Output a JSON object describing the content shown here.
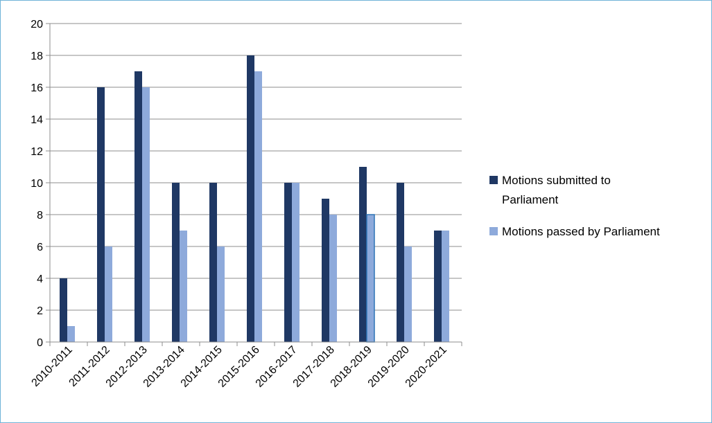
{
  "chart_data": {
    "type": "bar",
    "title": "",
    "xlabel": "",
    "ylabel": "",
    "categories": [
      "2010-2011",
      "2011-2012",
      "2012-2013",
      "2013-2014",
      "2014-2015",
      "2015-2016",
      "2016-2017",
      "2017-2018",
      "2018-2019",
      "2019-2020",
      "2020-2021"
    ],
    "series": [
      {
        "name": "Motions submitted to Parliament",
        "color": "#1f3864",
        "values": [
          4,
          16,
          17,
          10,
          10,
          18,
          10,
          9,
          11,
          10,
          7
        ]
      },
      {
        "name": "Motions passed by Parliament",
        "color": "#8eaadb",
        "values": [
          1,
          6,
          16,
          7,
          6,
          17,
          10,
          8,
          8,
          6,
          7
        ]
      }
    ],
    "ylim": [
      0,
      20
    ],
    "yticks": [
      0,
      2,
      4,
      6,
      8,
      10,
      12,
      14,
      16,
      18,
      20
    ],
    "grid": true,
    "legend": "right",
    "legend_lines": [
      [
        "Motions submitted to",
        "Parliament"
      ],
      [
        "Motions passed by Parliament"
      ]
    ],
    "highlight": {
      "series": 1,
      "category": 8,
      "edge_color": "#2e75b6"
    }
  }
}
